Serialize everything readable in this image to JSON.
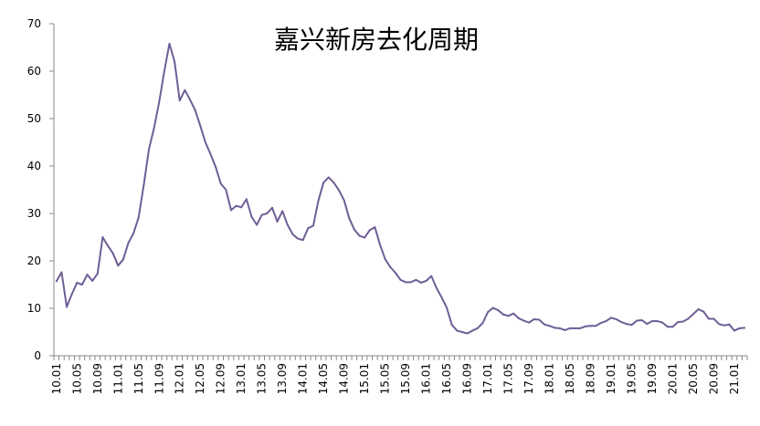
{
  "chart_data": {
    "type": "line",
    "title": "嘉兴新房去化周期",
    "xlabel": "",
    "ylabel": "",
    "ylim": [
      0,
      70
    ],
    "yticks": [
      0,
      10,
      20,
      30,
      40,
      50,
      60,
      70
    ],
    "grid": false,
    "legend": "none",
    "line_color": "#6F5E96",
    "tick_labels": [
      "10.01",
      "10.05",
      "10.09",
      "11.01",
      "11.05",
      "11.09",
      "12.01",
      "12.05",
      "12.09",
      "13.01",
      "13.05",
      "13.09",
      "14.01",
      "14.05",
      "14.09",
      "15.01",
      "15.05",
      "15.09",
      "16.01",
      "16.05",
      "16.09",
      "17.01",
      "17.05",
      "17.09",
      "18.01",
      "18.05",
      "18.09",
      "19.01",
      "19.05",
      "19.09",
      "20.01",
      "20.05",
      "20.09",
      "21.01"
    ],
    "series": [
      {
        "values": [
          15.7,
          17.6,
          10.3,
          13.0,
          15.4,
          15.0,
          17.1,
          15.8,
          17.3,
          25.0,
          23.2,
          21.6,
          19.0,
          20.3,
          23.8,
          25.8,
          29.2,
          36.0,
          43.5,
          48.0,
          53.5,
          60.0,
          65.8,
          62.0,
          53.8,
          56.0,
          54.0,
          51.8,
          48.5,
          45.0,
          42.5,
          39.8,
          36.3,
          35.0,
          30.7,
          31.6,
          31.3,
          33.0,
          29.3,
          27.6,
          29.7,
          30.0,
          31.2,
          28.3,
          30.5,
          27.6,
          25.6,
          24.7,
          24.4,
          26.9,
          27.4,
          32.7,
          36.5,
          37.6,
          36.5,
          34.9,
          32.8,
          29.0,
          26.6,
          25.3,
          24.9,
          26.5,
          27.1,
          23.4,
          20.4,
          18.7,
          17.5,
          16.0,
          15.5,
          15.5,
          16.0,
          15.4,
          15.8,
          16.8,
          14.3,
          12.3,
          10.1,
          6.5,
          5.3,
          5.0,
          4.7,
          5.3,
          5.8,
          6.9,
          9.2,
          10.1,
          9.6,
          8.7,
          8.4,
          8.9,
          7.9,
          7.4,
          7.0,
          7.7,
          7.6,
          6.6,
          6.3,
          5.9,
          5.8,
          5.4,
          5.8,
          5.8,
          5.8,
          6.2,
          6.3,
          6.3,
          6.9,
          7.3,
          8.0,
          7.7,
          7.1,
          6.7,
          6.5,
          7.4,
          7.5,
          6.7,
          7.3,
          7.3,
          7.0,
          6.1,
          6.1,
          7.1,
          7.2,
          7.8,
          8.8,
          9.8,
          9.3,
          7.8,
          7.8,
          6.7,
          6.4,
          6.6,
          5.3,
          5.8,
          5.9
        ]
      }
    ]
  }
}
